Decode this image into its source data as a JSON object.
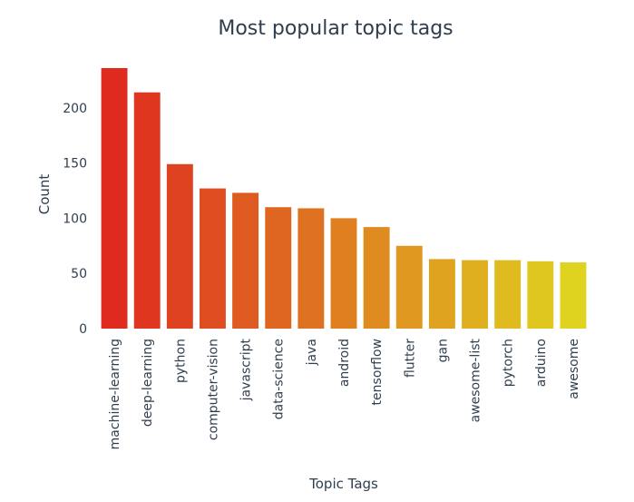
{
  "chart_data": {
    "type": "bar",
    "title": "Most popular topic tags",
    "xlabel": "Topic Tags",
    "ylabel": "Count",
    "categories": [
      "machine-learning",
      "deep-learning",
      "python",
      "computer-vision",
      "javascript",
      "data-science",
      "java",
      "android",
      "tensorflow",
      "flutter",
      "gan",
      "awesome-list",
      "pytorch",
      "arduino",
      "awesome"
    ],
    "values": [
      236,
      214,
      149,
      127,
      123,
      110,
      109,
      100,
      92,
      75,
      63,
      62,
      62,
      61,
      60
    ],
    "ylim": [
      0,
      236
    ],
    "yticks": [
      0,
      50,
      100,
      150,
      200
    ],
    "grid": false,
    "legend": "none",
    "colors": {
      "gradient_start": "#df2a20",
      "gradient_end": "#dfd320",
      "text": "#2f3e4e",
      "background": "#ffffff"
    }
  }
}
